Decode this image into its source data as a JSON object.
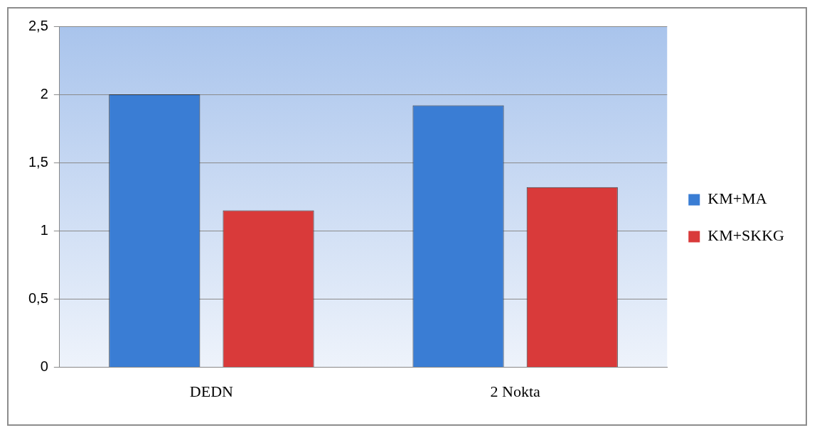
{
  "chart_data": {
    "type": "bar",
    "categories": [
      "DEDN",
      "2 Nokta"
    ],
    "series": [
      {
        "name": "KM+MA",
        "color": "#3a7dd4",
        "values": [
          2.0,
          1.92
        ]
      },
      {
        "name": "KM+SKKG",
        "color": "#d93a3a",
        "values": [
          1.15,
          1.32
        ]
      }
    ],
    "ylim": [
      0,
      2.5
    ],
    "yticks": [
      {
        "value": 0,
        "label": "0"
      },
      {
        "value": 0.5,
        "label": "0,5"
      },
      {
        "value": 1,
        "label": "1"
      },
      {
        "value": 1.5,
        "label": "1,5"
      },
      {
        "value": 2,
        "label": "2"
      },
      {
        "value": 2.5,
        "label": "2,5"
      }
    ],
    "grid": "y",
    "legend": "right"
  }
}
